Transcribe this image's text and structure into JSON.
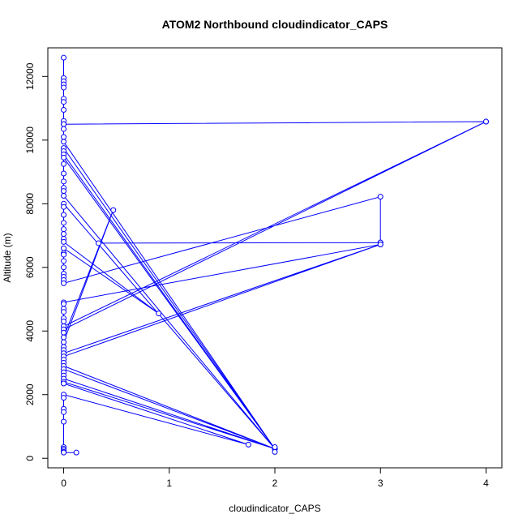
{
  "chart_data": {
    "type": "line",
    "title": "ATOM2 Northbound cloudindicator_CAPS",
    "xlabel": "cloudindicator_CAPS",
    "ylabel": "Altitude (m)",
    "xlim": [
      -0.15,
      4.15
    ],
    "ylim": [
      -300,
      12900
    ],
    "x_ticks": [
      0,
      1,
      2,
      3,
      4
    ],
    "y_ticks": [
      0,
      2000,
      4000,
      6000,
      8000,
      10000,
      12000
    ],
    "grid": false,
    "legend": "none",
    "color": "#0000ff",
    "marker": "open-circle",
    "series": [
      {
        "points": [
          [
            0,
            12590
          ],
          [
            0,
            11950
          ],
          [
            0,
            11850
          ],
          [
            0,
            11750
          ],
          [
            0,
            11650
          ],
          [
            0,
            11300
          ],
          [
            0,
            11200
          ],
          [
            0,
            10950
          ],
          [
            0,
            10600
          ],
          [
            0,
            10500
          ],
          [
            4,
            10580
          ],
          [
            0,
            10500
          ],
          [
            0,
            10350
          ],
          [
            0,
            10100
          ],
          [
            0,
            9950
          ],
          [
            2,
            300
          ],
          [
            0,
            9750
          ],
          [
            0,
            9650
          ],
          [
            0,
            9550
          ],
          [
            2,
            300
          ],
          [
            0,
            9450
          ],
          [
            0,
            9250
          ],
          [
            0,
            8950
          ],
          [
            0,
            8700
          ],
          [
            0,
            8500
          ],
          [
            0,
            8400
          ],
          [
            0,
            8250
          ],
          [
            2,
            300
          ],
          [
            0,
            8000
          ],
          [
            0,
            7900
          ],
          [
            0,
            7650
          ],
          [
            0,
            7400
          ],
          [
            0,
            7200
          ],
          [
            0,
            7050
          ],
          [
            0,
            6900
          ],
          [
            0,
            6800
          ],
          [
            0.9,
            4550
          ],
          [
            0,
            6600
          ],
          [
            0,
            6450
          ],
          [
            0,
            6400
          ],
          [
            0,
            6200
          ],
          [
            0,
            6000
          ],
          [
            0,
            5800
          ],
          [
            0,
            5700
          ],
          [
            0,
            5600
          ],
          [
            0,
            5500
          ],
          [
            3,
            8220
          ],
          [
            3,
            6780
          ],
          [
            0.33,
            6760
          ],
          [
            3,
            6780
          ],
          [
            3,
            6720
          ],
          [
            0,
            4900
          ],
          [
            0,
            4850
          ],
          [
            0,
            4700
          ],
          [
            0,
            4600
          ],
          [
            0,
            4400
          ],
          [
            0,
            4300
          ],
          [
            0,
            4150
          ],
          [
            4,
            10580
          ],
          [
            0,
            4050
          ],
          [
            0,
            3950
          ],
          [
            0,
            3800
          ],
          [
            0.47,
            7800
          ],
          [
            0,
            3650
          ],
          [
            0,
            3500
          ],
          [
            0,
            3400
          ],
          [
            0,
            3300
          ],
          [
            3,
            6720
          ],
          [
            0,
            3200
          ],
          [
            0,
            3100
          ],
          [
            0,
            3000
          ],
          [
            0,
            2900
          ],
          [
            2,
            300
          ],
          [
            0,
            2800
          ],
          [
            0,
            2700
          ],
          [
            0,
            2600
          ],
          [
            0,
            2500
          ],
          [
            2,
            300
          ],
          [
            0,
            2400
          ],
          [
            0,
            2350
          ],
          [
            1.75,
            430
          ],
          [
            0,
            2000
          ],
          [
            0,
            1900
          ],
          [
            0,
            1550
          ],
          [
            0,
            1450
          ],
          [
            0,
            1150
          ],
          [
            0,
            350
          ],
          [
            0,
            300
          ],
          [
            0,
            250
          ],
          [
            0,
            200
          ],
          [
            0,
            180
          ],
          [
            0.12,
            180
          ]
        ]
      },
      {
        "points": [
          [
            2,
            350
          ],
          [
            2,
            200
          ]
        ]
      }
    ]
  }
}
